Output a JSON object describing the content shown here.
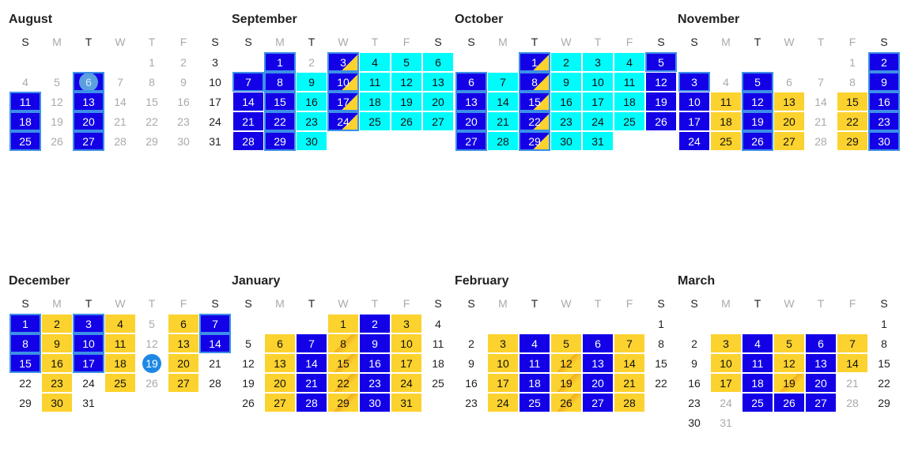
{
  "weekday_labels": [
    "S",
    "M",
    "T",
    "W",
    "T",
    "F",
    "S"
  ],
  "months": [
    {
      "name": "August",
      "start_col": 4,
      "days": 31,
      "styles": {
        "4": "grey",
        "5": "grey",
        "6": "today-light",
        "7": "grey",
        "8": "grey",
        "9": "grey",
        "11": "blue",
        "12": "grey",
        "13": "blue",
        "14": "grey",
        "15": "grey",
        "16": "grey",
        "18": "blue",
        "19": "grey",
        "20": "blue",
        "21": "grey",
        "22": "grey",
        "23": "grey",
        "25": "blue",
        "26": "grey",
        "27": "blue",
        "28": "grey",
        "29": "grey",
        "30": "grey",
        "1": "grey",
        "2": "grey",
        "3": "dark"
      },
      "hl": [
        "6",
        "11",
        "13",
        "18",
        "20",
        "25",
        "27"
      ]
    },
    {
      "name": "September",
      "start_col": 1,
      "days": 30,
      "styles": {
        "1": "blue",
        "2": "grey",
        "3": "split",
        "4": "cyan",
        "5": "cyan",
        "6": "cyan",
        "7": "blue",
        "8": "blue",
        "9": "cyan",
        "10": "split",
        "11": "cyan",
        "12": "cyan",
        "13": "cyan",
        "14": "blue",
        "15": "blue",
        "16": "cyan",
        "17": "split",
        "18": "cyan",
        "19": "cyan",
        "20": "cyan",
        "21": "blue",
        "22": "blue",
        "23": "cyan",
        "24": "split",
        "25": "cyan",
        "26": "cyan",
        "27": "cyan",
        "28": "blue",
        "29": "blue",
        "30": "cyan"
      },
      "hl": [
        "1",
        "3",
        "7",
        "8",
        "10",
        "15",
        "17",
        "22",
        "24",
        "29"
      ]
    },
    {
      "name": "October",
      "start_col": 2,
      "days": 31,
      "styles": {
        "1": "split",
        "2": "cyan",
        "3": "cyan",
        "4": "cyan",
        "5": "blue",
        "6": "blue",
        "7": "cyan",
        "8": "split",
        "9": "cyan",
        "10": "cyan",
        "11": "cyan",
        "12": "blue",
        "13": "blue",
        "14": "cyan",
        "15": "split",
        "16": "cyan",
        "17": "cyan",
        "18": "cyan",
        "19": "blue",
        "20": "blue",
        "21": "cyan",
        "22": "split",
        "23": "cyan",
        "24": "cyan",
        "25": "cyan",
        "26": "blue",
        "27": "blue",
        "28": "cyan",
        "29": "split",
        "30": "cyan",
        "31": "cyan"
      },
      "hl": [
        "1",
        "5",
        "6",
        "8",
        "13",
        "15",
        "20",
        "22",
        "27",
        "29"
      ]
    },
    {
      "name": "November",
      "start_col": 5,
      "days": 30,
      "styles": {
        "1": "grey",
        "2": "blue",
        "3": "blue",
        "4": "grey",
        "5": "blue",
        "6": "grey",
        "7": "grey",
        "8": "grey",
        "9": "blue",
        "10": "blue",
        "11": "yellow",
        "12": "blue",
        "13": "yellow",
        "14": "grey",
        "15": "yellow",
        "16": "blue",
        "17": "blue",
        "18": "yellow",
        "19": "blue",
        "20": "yellow",
        "21": "grey",
        "22": "yellow",
        "23": "blue",
        "24": "blue",
        "25": "yellow",
        "26": "blue",
        "27": "yellow",
        "28": "grey",
        "29": "yellow",
        "30": "blue"
      },
      "hl": [
        "2",
        "3",
        "5",
        "9",
        "12",
        "16",
        "19",
        "23",
        "26",
        "30"
      ]
    },
    {
      "name": "December",
      "start_col": 0,
      "days": 31,
      "styles": {
        "1": "blue",
        "2": "yellow",
        "3": "blue",
        "4": "yellow",
        "5": "grey",
        "6": "yellow",
        "7": "blue",
        "8": "blue",
        "9": "yellow",
        "10": "blue",
        "11": "yellow",
        "12": "grey",
        "13": "yellow",
        "14": "blue",
        "15": "blue",
        "16": "yellow",
        "17": "blue",
        "18": "yellow",
        "19": "today-strong",
        "20": "yellow",
        "21": "dark",
        "22": "dark",
        "23": "yellow",
        "24": "dark",
        "25": "yellow",
        "26": "grey",
        "27": "yellow",
        "28": "dark",
        "29": "dark",
        "30": "yellow",
        "31": "dark"
      },
      "hl": [
        "1",
        "3",
        "7",
        "8",
        "10",
        "14",
        "15",
        "17"
      ]
    },
    {
      "name": "January",
      "start_col": 3,
      "days": 31,
      "styles": {
        "1": "yellow",
        "2": "blue",
        "3": "yellow",
        "4": "dark",
        "5": "dark",
        "6": "yellow",
        "7": "blue",
        "8": "yhatch",
        "9": "blue",
        "10": "yellow",
        "11": "dark",
        "12": "dark",
        "13": "yellow",
        "14": "blue",
        "15": "yhatch",
        "16": "blue",
        "17": "yellow",
        "18": "dark",
        "19": "dark",
        "20": "yellow",
        "21": "blue",
        "22": "yhatch",
        "23": "blue",
        "24": "yellow",
        "25": "dark",
        "26": "dark",
        "27": "yellow",
        "28": "blue",
        "29": "yhatch",
        "30": "blue",
        "31": "yellow"
      },
      "hl": []
    },
    {
      "name": "February",
      "start_col": 6,
      "days": 28,
      "styles": {
        "1": "dark",
        "2": "dark",
        "3": "yellow",
        "4": "blue",
        "5": "yellow",
        "6": "blue",
        "7": "yellow",
        "8": "dark",
        "9": "dark",
        "10": "yellow",
        "11": "blue",
        "12": "yhatch",
        "13": "blue",
        "14": "yellow",
        "15": "dark",
        "16": "dark",
        "17": "yellow",
        "18": "blue",
        "19": "yhatch",
        "20": "blue",
        "21": "yellow",
        "22": "dark",
        "23": "dark",
        "24": "yellow",
        "25": "blue",
        "26": "yhatch",
        "27": "blue",
        "28": "yellow"
      },
      "hl": []
    },
    {
      "name": "March",
      "start_col": 6,
      "days": 31,
      "styles": {
        "1": "dark",
        "2": "dark",
        "3": "yellow",
        "4": "blue",
        "5": "yellow",
        "6": "blue",
        "7": "yellow",
        "8": "dark",
        "9": "dark",
        "10": "yellow",
        "11": "blue",
        "12": "yellow",
        "13": "blue",
        "14": "yellow",
        "15": "dark",
        "16": "dark",
        "17": "yellow",
        "18": "blue",
        "19": "yhatch",
        "20": "blue",
        "21": "grey",
        "22": "dark",
        "23": "dark",
        "24": "grey",
        "25": "blue",
        "26": "blue",
        "27": "blue",
        "28": "grey",
        "29": "dark",
        "30": "dark",
        "31": "grey"
      },
      "hl": []
    }
  ],
  "colors": {
    "blue": "#1300e6",
    "cyan": "#00fbfb",
    "yellow": "#fcd22e",
    "today": "#1e88e5"
  }
}
